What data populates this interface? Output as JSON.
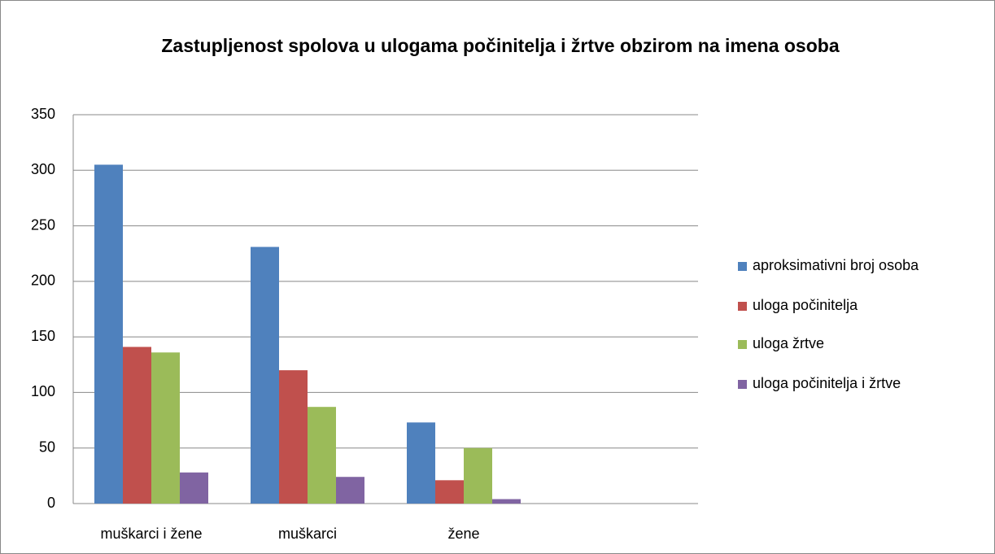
{
  "chart_data": {
    "type": "bar",
    "title": "Zastupljenost spolova u ulogama počinitelja i žrtve obzirom na imena osoba",
    "categories": [
      "muškarci i žene",
      "muškarci",
      "žene",
      null
    ],
    "series": [
      {
        "name": "aproksimativni broj osoba",
        "color": "#4f81bd",
        "values": [
          305,
          231,
          73,
          null
        ]
      },
      {
        "name": "uloga počinitelja",
        "color": "#c0504d",
        "values": [
          141,
          120,
          21,
          null
        ]
      },
      {
        "name": "uloga žrtve",
        "color": "#9bbb59",
        "values": [
          136,
          87,
          50,
          null
        ]
      },
      {
        "name": "uloga počinitelja i žrtve",
        "color": "#8064a2",
        "values": [
          28,
          24,
          4,
          null
        ]
      }
    ],
    "ylim": [
      0,
      350
    ],
    "yticks": [
      0,
      50,
      100,
      150,
      200,
      250,
      300,
      350
    ],
    "grid": true,
    "legend": "right"
  }
}
